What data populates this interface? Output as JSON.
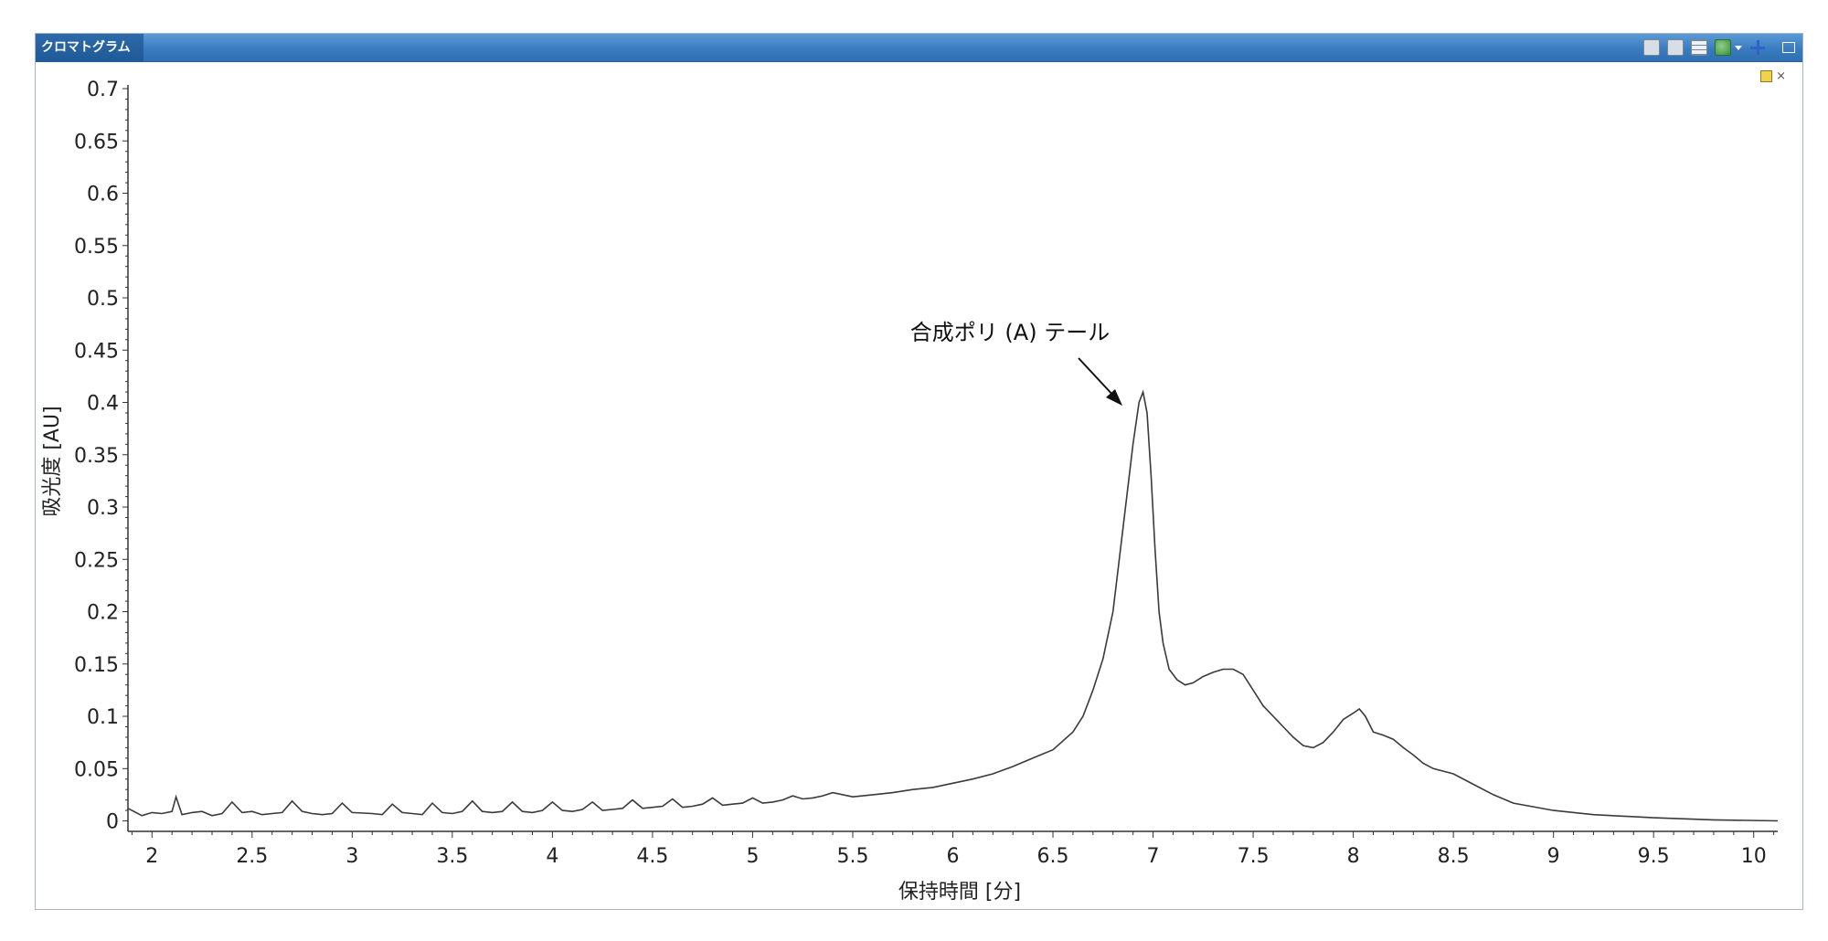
{
  "window": {
    "title": "クロマトグラム",
    "toolbar_icons": [
      "export-icon",
      "copy-icon",
      "table-icon",
      "layers-icon",
      "dropdown-caret-icon",
      "move-icon",
      "restore-window-icon"
    ],
    "pin_icon": "pin-icon",
    "close_glyph": "×"
  },
  "chart_data": {
    "type": "line",
    "title": "",
    "xlabel": "保持時間 [分]",
    "ylabel": "吸光度 [AU]",
    "xlim": [
      1.88,
      10.12
    ],
    "ylim": [
      -0.01,
      0.7
    ],
    "xticks": [
      2,
      2.5,
      3,
      3.5,
      4,
      4.5,
      5,
      5.5,
      6,
      6.5,
      7,
      7.5,
      8,
      8.5,
      9,
      9.5,
      10
    ],
    "yticks": [
      0,
      0.05,
      0.1,
      0.15,
      0.2,
      0.25,
      0.3,
      0.35,
      0.4,
      0.45,
      0.5,
      0.55,
      0.6,
      0.65,
      0.7
    ],
    "line_color": "#3a3a3a",
    "grid": false,
    "annotation": {
      "text": "合成ポリ (A) テール",
      "x": 6.93,
      "y": 0.4
    },
    "series": [
      {
        "x": [
          1.88,
          1.95,
          2.0,
          2.05,
          2.1,
          2.12,
          2.15,
          2.2,
          2.25,
          2.3,
          2.35,
          2.4,
          2.45,
          2.5,
          2.55,
          2.6,
          2.65,
          2.7,
          2.75,
          2.8,
          2.85,
          2.9,
          2.95,
          3.0,
          3.1,
          3.15,
          3.2,
          3.25,
          3.3,
          3.35,
          3.4,
          3.45,
          3.5,
          3.55,
          3.6,
          3.65,
          3.7,
          3.75,
          3.8,
          3.85,
          3.9,
          3.95,
          4.0,
          4.05,
          4.1,
          4.15,
          4.2,
          4.25,
          4.3,
          4.35,
          4.4,
          4.45,
          4.5,
          4.55,
          4.6,
          4.65,
          4.7,
          4.75,
          4.8,
          4.85,
          4.9,
          4.95,
          5.0,
          5.05,
          5.1,
          5.15,
          5.2,
          5.25,
          5.3,
          5.35,
          5.4,
          5.5,
          5.6,
          5.7,
          5.8,
          5.9,
          6.0,
          6.1,
          6.2,
          6.3,
          6.4,
          6.5,
          6.6,
          6.65,
          6.7,
          6.75,
          6.8,
          6.85,
          6.9,
          6.93,
          6.95,
          6.97,
          6.99,
          7.01,
          7.03,
          7.05,
          7.08,
          7.12,
          7.16,
          7.2,
          7.25,
          7.3,
          7.35,
          7.4,
          7.45,
          7.5,
          7.55,
          7.6,
          7.65,
          7.7,
          7.75,
          7.8,
          7.85,
          7.9,
          7.95,
          8.0,
          8.03,
          8.06,
          8.1,
          8.15,
          8.2,
          8.25,
          8.3,
          8.35,
          8.4,
          8.5,
          8.6,
          8.7,
          8.8,
          9.0,
          9.2,
          9.5,
          9.8,
          10.12
        ],
        "y": [
          0.012,
          0.005,
          0.008,
          0.007,
          0.009,
          0.023,
          0.006,
          0.008,
          0.009,
          0.005,
          0.007,
          0.018,
          0.008,
          0.009,
          0.006,
          0.007,
          0.008,
          0.019,
          0.009,
          0.007,
          0.006,
          0.007,
          0.017,
          0.008,
          0.007,
          0.006,
          0.016,
          0.008,
          0.007,
          0.006,
          0.017,
          0.008,
          0.007,
          0.009,
          0.019,
          0.009,
          0.008,
          0.009,
          0.018,
          0.009,
          0.008,
          0.01,
          0.018,
          0.01,
          0.009,
          0.011,
          0.018,
          0.01,
          0.011,
          0.012,
          0.02,
          0.012,
          0.013,
          0.014,
          0.021,
          0.013,
          0.014,
          0.016,
          0.022,
          0.015,
          0.016,
          0.017,
          0.022,
          0.017,
          0.018,
          0.02,
          0.024,
          0.021,
          0.022,
          0.024,
          0.027,
          0.023,
          0.025,
          0.027,
          0.03,
          0.032,
          0.036,
          0.04,
          0.045,
          0.052,
          0.06,
          0.068,
          0.085,
          0.1,
          0.125,
          0.155,
          0.2,
          0.28,
          0.36,
          0.4,
          0.41,
          0.39,
          0.33,
          0.26,
          0.2,
          0.17,
          0.145,
          0.135,
          0.13,
          0.132,
          0.138,
          0.142,
          0.145,
          0.145,
          0.14,
          0.125,
          0.11,
          0.1,
          0.09,
          0.08,
          0.072,
          0.07,
          0.075,
          0.085,
          0.097,
          0.103,
          0.107,
          0.1,
          0.085,
          0.082,
          0.078,
          0.07,
          0.063,
          0.055,
          0.05,
          0.045,
          0.035,
          0.025,
          0.017,
          0.01,
          0.006,
          0.003,
          0.001,
          0.0
        ]
      }
    ]
  }
}
